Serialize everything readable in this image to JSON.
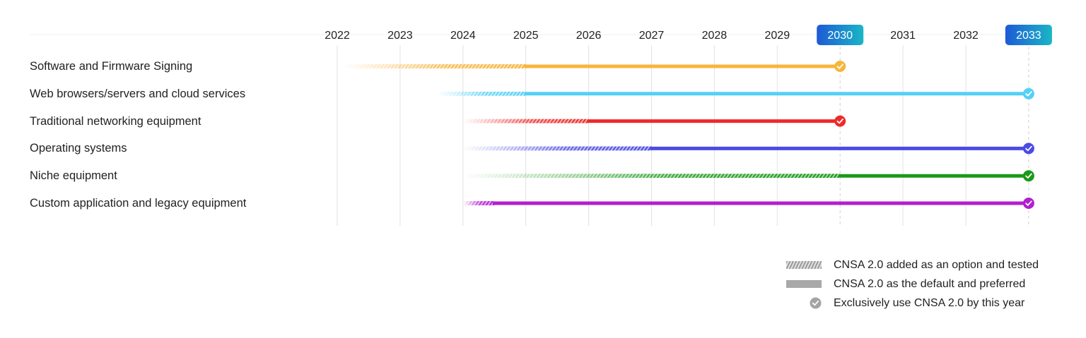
{
  "chart_data": {
    "type": "timeline",
    "title": "",
    "x": [
      2022,
      2023,
      2024,
      2025,
      2026,
      2027,
      2028,
      2029,
      2030,
      2031,
      2032,
      2033
    ],
    "highlighted_years": [
      2030,
      2033
    ],
    "highlight_color_from": "#1d5ad6",
    "highlight_color_to": "#1ab6c6",
    "series": [
      {
        "name": "Software and Firmware Signing",
        "color": "#f7b53c",
        "option_start": 2022.1,
        "default_start": 2025,
        "exclusive_by": 2030
      },
      {
        "name": "Web browsers/servers and cloud services",
        "color": "#55d0f7",
        "option_start": 2023.6,
        "default_start": 2025,
        "exclusive_by": 2033
      },
      {
        "name": "Traditional networking equipment",
        "color": "#ee2a2a",
        "option_start": 2024,
        "default_start": 2026,
        "exclusive_by": 2030
      },
      {
        "name": "Operating systems",
        "color": "#4b4be6",
        "option_start": 2024,
        "default_start": 2027,
        "exclusive_by": 2033
      },
      {
        "name": "Niche equipment",
        "color": "#1a9a1a",
        "option_start": 2024,
        "default_start": 2030,
        "exclusive_by": 2033
      },
      {
        "name": "Custom application and legacy equipment",
        "color": "#b21ed1",
        "option_start": 2024,
        "default_start": 2024.5,
        "exclusive_by": 2033
      }
    ],
    "legend": [
      {
        "kind": "hatched",
        "label": "CNSA 2.0 added as an option and tested"
      },
      {
        "kind": "solid",
        "label": "CNSA 2.0 as the default and preferred"
      },
      {
        "kind": "check",
        "label": "Exclusively use CNSA 2.0 by this year"
      }
    ]
  }
}
